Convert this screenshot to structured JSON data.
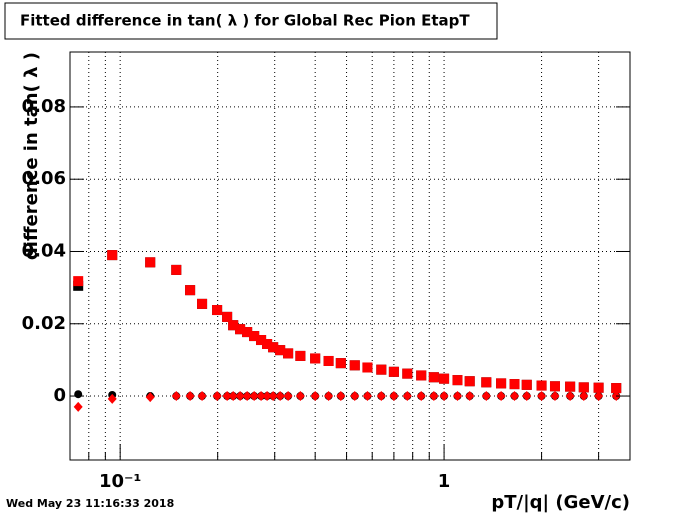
{
  "chart_data": {
    "type": "scatter",
    "title": "Fitted difference in tan( λ ) for Global Rec Pion EtapT",
    "y_label": "difference in tan( λ )",
    "x_label": "pT/|q| (GeV/c)",
    "timestamp": "Wed May 23 11:16:33 2018",
    "x_log": true,
    "grid": true,
    "xlim": [
      0.07,
      3.75
    ],
    "ylim": [
      -0.0177,
      0.0952
    ],
    "xticks": [
      {
        "value": 0.1,
        "label": "10⁻¹"
      },
      1
    ],
    "xminor_ticks": [
      0.08,
      0.09,
      0.2,
      0.3,
      0.4,
      0.5,
      0.6,
      0.7,
      0.8,
      0.9,
      2,
      3
    ],
    "yticks": [
      0,
      0.02,
      0.04,
      0.06,
      0.08
    ],
    "x": [
      0.0742,
      0.0945,
      0.1238,
      0.149,
      0.1644,
      0.179,
      0.1992,
      0.2139,
      0.2233,
      0.2346,
      0.2466,
      0.2592,
      0.2723,
      0.2842,
      0.2967,
      0.3118,
      0.33,
      0.36,
      0.4,
      0.44,
      0.48,
      0.53,
      0.58,
      0.64,
      0.7,
      0.77,
      0.85,
      0.93,
      1.0,
      1.1,
      1.2,
      1.35,
      1.5,
      1.65,
      1.8,
      2.0,
      2.2,
      2.45,
      2.7,
      3.0,
      3.4
    ],
    "series": [
      {
        "marker": "square",
        "color": "#000000",
        "values": [
          0.0305,
          0.039,
          0.037,
          0.0349,
          0.0293,
          0.0255,
          0.0238,
          0.0219,
          0.0196,
          0.0185,
          0.0177,
          0.0166,
          0.0155,
          0.0144,
          0.0135,
          0.0127,
          0.0118,
          0.0111,
          0.0104,
          0.0097,
          0.0091,
          0.0085,
          0.0079,
          0.0073,
          0.0067,
          0.0062,
          0.0057,
          0.0052,
          0.0048,
          0.0044,
          0.0041,
          0.0038,
          0.0035,
          0.0033,
          0.0031,
          0.0029,
          0.0027,
          0.0026,
          0.0024,
          0.0023,
          0.0022
        ]
      },
      {
        "marker": "circle",
        "color": "#000000",
        "values": [
          0.0005,
          0.0003,
          0,
          0,
          0,
          0,
          0,
          0,
          0,
          0,
          0,
          0,
          0,
          0,
          0,
          0,
          0,
          0,
          0,
          0,
          0,
          0,
          0,
          0,
          0,
          0,
          0,
          0,
          0,
          0,
          0,
          0,
          0,
          0,
          0,
          0,
          0,
          0,
          0,
          0,
          0
        ]
      },
      {
        "marker": "square",
        "color": "#ff0000",
        "values": [
          0.0318,
          0.039,
          0.037,
          0.0349,
          0.0293,
          0.0255,
          0.0238,
          0.0219,
          0.0196,
          0.0185,
          0.0177,
          0.0166,
          0.0155,
          0.0144,
          0.0135,
          0.0127,
          0.0118,
          0.0111,
          0.0104,
          0.0097,
          0.0091,
          0.0085,
          0.0079,
          0.0073,
          0.0067,
          0.0062,
          0.0057,
          0.0052,
          0.0048,
          0.0044,
          0.0041,
          0.0038,
          0.0035,
          0.0033,
          0.0031,
          0.0029,
          0.0027,
          0.0026,
          0.0024,
          0.0023,
          0.0022
        ]
      },
      {
        "marker": "diamond",
        "color": "#ff0000",
        "values": [
          -0.003,
          -0.0008,
          -0.0003,
          0,
          0,
          0,
          0,
          0,
          0,
          0,
          0,
          0,
          0,
          0,
          0,
          0,
          0,
          0,
          0,
          0,
          0,
          0,
          0,
          0,
          0,
          0,
          0,
          0,
          0,
          0,
          0,
          0,
          0,
          0,
          0,
          0,
          0,
          0,
          0,
          0,
          0
        ]
      }
    ]
  }
}
